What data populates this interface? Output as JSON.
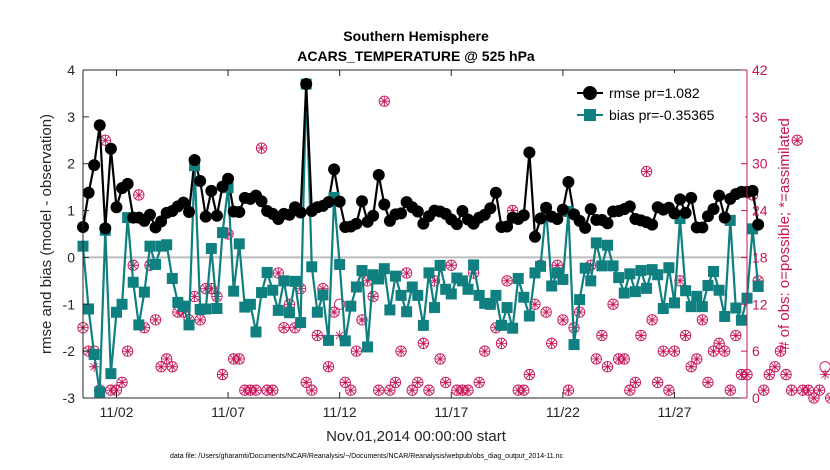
{
  "chart_data": {
    "type": "line",
    "title": "Southern Hemisphere",
    "subtitle": "ACARS_TEMPERATURE @ 525 hPa",
    "xlabel": "Nov.01,2014 00:00:00 start",
    "ylabel": "rmse and bias (model - observation)",
    "ylabel_right": "# of obs: o=possible; *=assimilated",
    "ylim": [
      -3,
      4
    ],
    "ylim_right": [
      0,
      42
    ],
    "xlim": [
      0.5,
      30.25
    ],
    "yticks": [
      "-3",
      "-2",
      "-1",
      "0",
      "1",
      "2",
      "3",
      "4"
    ],
    "yticks_right": [
      "0",
      "6",
      "12",
      "18",
      "24",
      "30",
      "36",
      "42"
    ],
    "xticks": [
      {
        "x": 2,
        "label": "11/02"
      },
      {
        "x": 7,
        "label": "11/07"
      },
      {
        "x": 12,
        "label": "11/12"
      },
      {
        "x": 17,
        "label": "11/17"
      },
      {
        "x": 22,
        "label": "11/22"
      },
      {
        "x": 27,
        "label": "11/27"
      }
    ],
    "x_start": 0.5,
    "x_step": 0.25,
    "legend_position": "top-right",
    "series": [
      {
        "name": "rmse",
        "legend_label": "rmse pr=1.082",
        "color": "#000000",
        "values": [
          0.65,
          1.38,
          1.97,
          2.82,
          0.62,
          2.32,
          1.07,
          1.48,
          1.57,
          0.85,
          0.85,
          0.78,
          0.91,
          0.64,
          0.77,
          0.95,
          0.99,
          1.09,
          1.17,
          0.97,
          2.08,
          1.63,
          0.87,
          1.42,
          0.89,
          1.51,
          1.68,
          0.98,
          0.97,
          1.27,
          1.25,
          1.32,
          1.2,
          0.99,
          0.93,
          0.82,
          0.93,
          0.91,
          1.07,
          0.96,
          3.7,
          0.99,
          1.07,
          1.1,
          1.18,
          1.88,
          1.19,
          0.65,
          0.66,
          0.72,
          1.2,
          0.76,
          0.89,
          1.76,
          1.13,
          0.78,
          0.92,
          0.94,
          1.18,
          1.07,
          0.98,
          0.72,
          0.88,
          1.0,
          0.98,
          0.93,
          0.81,
          0.71,
          0.99,
          0.81,
          0.72,
          0.85,
          0.91,
          1.05,
          1.38,
          0.65,
          0.66,
          0.85,
          0.82,
          0.9,
          2.24,
          0.44,
          0.83,
          1.06,
          0.87,
          0.82,
          1.02,
          1.61,
          0.92,
          0.78,
          0.63,
          1.03,
          0.8,
          0.8,
          0.73,
          0.98,
          0.99,
          1.03,
          1.09,
          0.82,
          0.79,
          0.75,
          0.7,
          1.07,
          1.02,
          1.06,
          0.94,
          1.24,
          0.95,
          1.27,
          0.64,
          0.64,
          0.88,
          1.03,
          1.32,
          0.85,
          1.25,
          1.35,
          1.4,
          1.4,
          1.42,
          0.7
        ]
      },
      {
        "name": "bias",
        "legend_label": "bias pr=-0.35365",
        "color": "#0f7f80",
        "values": [
          0.24,
          -1.1,
          -2.07,
          -2.87,
          0.58,
          -2.48,
          -1.17,
          -1.0,
          0.85,
          -0.53,
          -1.44,
          -0.74,
          0.24,
          -0.15,
          0.24,
          0.27,
          -0.45,
          -0.96,
          -1.04,
          -1.44,
          1.96,
          -1.11,
          -1.1,
          0.19,
          -1.09,
          0.53,
          1.49,
          -0.72,
          0.29,
          -1.06,
          -1.0,
          -1.59,
          -0.75,
          -0.32,
          -0.7,
          -1.13,
          -0.5,
          -1.18,
          -0.51,
          -1.39,
          3.7,
          -0.2,
          -1.17,
          -0.8,
          -1.77,
          1.28,
          -0.15,
          -1.78,
          -1.04,
          -0.63,
          -0.28,
          -1.91,
          -0.37,
          -0.46,
          -0.24,
          -1.12,
          -0.4,
          -0.81,
          -1.16,
          -0.63,
          -0.81,
          -1.45,
          -0.33,
          -1.07,
          -0.17,
          -0.68,
          -0.78,
          -0.44,
          -0.5,
          -0.68,
          -0.16,
          -0.81,
          -0.98,
          -1.0,
          -0.81,
          -1.45,
          -1.07,
          -1.51,
          -0.45,
          -0.85,
          -1.25,
          -0.33,
          -0.19,
          1.03,
          -0.61,
          -0.33,
          -0.47,
          0.98,
          -1.86,
          -0.9,
          -0.23,
          -0.5,
          0.31,
          -0.18,
          0.26,
          -0.18,
          -0.43,
          -0.76,
          -0.35,
          -0.73,
          -0.28,
          -0.66,
          -0.26,
          -0.37,
          -1.09,
          -0.22,
          -0.97,
          0.83,
          -0.71,
          -1.05,
          -0.83,
          -1.05,
          -0.6,
          -0.3,
          -0.7,
          -1.26,
          0.79,
          -1.08,
          -1.34,
          -0.87,
          0.61,
          -0.62
        ]
      }
    ],
    "obs_counts": {
      "color": "#c8155a",
      "possible": [
        9,
        6,
        6,
        1,
        33,
        1,
        1,
        2,
        6,
        17,
        26,
        9,
        17,
        10,
        4,
        5,
        4,
        11,
        11,
        10,
        13,
        10,
        14,
        14,
        13,
        3,
        21,
        5,
        5,
        1,
        1,
        1,
        32,
        1,
        1,
        16,
        9,
        12,
        9,
        14,
        2,
        1,
        8,
        14,
        4,
        11,
        12,
        2,
        1,
        6,
        10,
        15,
        13,
        1,
        38,
        1,
        2,
        6,
        16,
        1,
        2,
        7,
        1,
        15,
        5,
        2,
        17,
        1,
        1,
        1,
        16,
        2,
        6,
        12,
        9,
        7,
        15,
        24,
        1,
        1,
        3,
        12,
        17,
        11,
        7,
        17,
        10,
        1,
        9,
        11,
        39,
        17,
        5,
        8,
        4,
        12,
        5,
        5,
        1,
        2,
        8,
        29,
        10,
        2,
        6,
        1,
        6,
        15,
        8,
        4,
        5,
        10,
        2,
        6,
        7,
        6,
        1,
        8,
        3,
        3,
        26,
        15,
        1,
        3,
        4,
        6,
        3,
        1,
        33,
        1,
        1,
        0,
        1,
        4,
        0,
        0
      ],
      "assimilated": [
        9,
        6,
        4,
        1,
        33,
        1,
        1,
        2,
        6,
        17,
        26,
        9,
        17,
        10,
        4,
        5,
        4,
        11,
        11,
        10,
        13,
        10,
        14,
        14,
        13,
        3,
        21,
        5,
        5,
        1,
        1,
        1,
        32,
        1,
        1,
        16,
        9,
        12,
        9,
        14,
        2,
        1,
        8,
        14,
        4,
        11,
        8,
        2,
        1,
        6,
        10,
        15,
        13,
        1,
        38,
        1,
        2,
        6,
        16,
        1,
        2,
        7,
        1,
        15,
        5,
        2,
        17,
        1,
        1,
        1,
        16,
        2,
        6,
        12,
        9,
        7,
        15,
        24,
        1,
        1,
        3,
        12,
        17,
        11,
        7,
        17,
        10,
        1,
        9,
        11,
        39,
        17,
        5,
        8,
        4,
        12,
        5,
        5,
        1,
        2,
        8,
        29,
        10,
        2,
        6,
        1,
        6,
        15,
        8,
        4,
        5,
        10,
        2,
        6,
        7,
        6,
        1,
        8,
        3,
        3,
        26,
        15,
        1,
        3,
        4,
        6,
        3,
        1,
        33,
        1,
        1,
        0,
        1,
        3,
        0,
        0
      ]
    }
  },
  "footnote": "data file: /Users/gharamti/Documents/NCAR/Reanalysis/~/Documents/NCAR/Reanalysis/webpub/obs_diag_output_2014-11.nc"
}
